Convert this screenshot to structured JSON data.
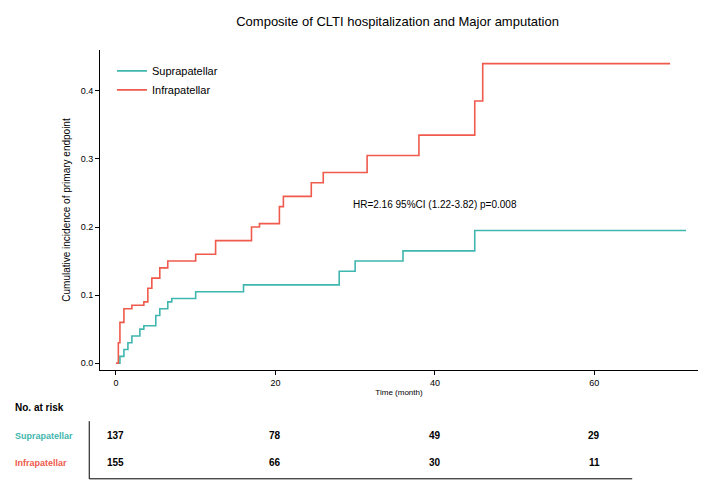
{
  "chart_data": {
    "type": "step",
    "title": "Composite of CLTI hospitalization and Major amputation",
    "x_label": "Time (month)",
    "y_label": "Cumulative incidence of primary endpoint",
    "xlim": [
      -2,
      73
    ],
    "xticks": [
      0,
      20,
      40,
      60
    ],
    "ylim": [
      -0.01,
      0.46
    ],
    "yticks": [
      {
        "value": 0,
        "label": "0.0"
      },
      0.1,
      0.2,
      0.3,
      0.4
    ],
    "grid": false,
    "legend": "top left",
    "series": [
      {
        "name": "Suprapatellar",
        "color": "#3fb6ae",
        "x": [
          0,
          0.5,
          1,
          1.5,
          2,
          3,
          3.5,
          5,
          5.5,
          6.5,
          7,
          10,
          16,
          28,
          30,
          36,
          45,
          71.5
        ],
        "values": [
          0,
          0.01,
          0.02,
          0.03,
          0.04,
          0.05,
          0.055,
          0.07,
          0.08,
          0.09,
          0.095,
          0.105,
          0.115,
          0.135,
          0.15,
          0.165,
          0.195,
          0.195
        ]
      },
      {
        "name": "Infrapatellar",
        "color": "#ef5a4c",
        "x": [
          0,
          0.3,
          0.5,
          1,
          2,
          3.5,
          4,
          4.5,
          5.5,
          6.5,
          10,
          12.5,
          17,
          18,
          20.5,
          21,
          24.5,
          26,
          31.5,
          38,
          45,
          46,
          69.5
        ],
        "values": [
          0,
          0.03,
          0.06,
          0.08,
          0.085,
          0.09,
          0.11,
          0.125,
          0.14,
          0.15,
          0.16,
          0.18,
          0.2,
          0.205,
          0.23,
          0.245,
          0.265,
          0.28,
          0.305,
          0.335,
          0.385,
          0.44,
          0.44
        ]
      }
    ],
    "annotations": [
      {
        "text": "HR=2.16 95%CI (1.22-3.82) p=0.008",
        "x": 40,
        "y": 0.233
      }
    ],
    "at_risk": {
      "title": "No. at risk",
      "times": [
        0,
        20,
        40,
        60
      ],
      "rows": [
        {
          "name": "Suprapatellar",
          "values": [
            137,
            78,
            49,
            29
          ]
        },
        {
          "name": "Infrapatellar",
          "values": [
            155,
            66,
            30,
            11
          ]
        }
      ]
    }
  }
}
